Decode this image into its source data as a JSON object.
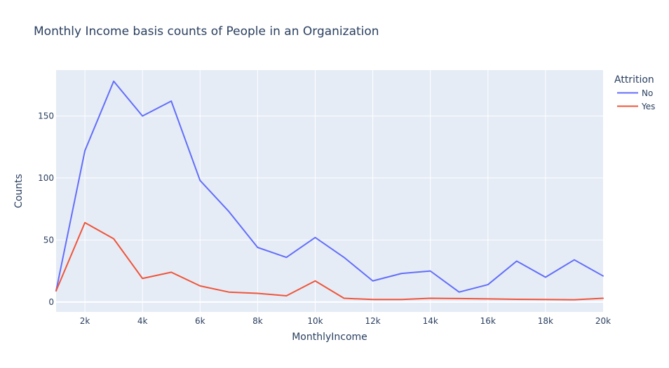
{
  "chart_data": {
    "type": "line",
    "title": "Monthly Income basis counts of People in an Organization",
    "xlabel": "MonthlyIncome",
    "ylabel": "Counts",
    "xlim": [
      1000,
      20000
    ],
    "ylim": [
      -8,
      187
    ],
    "x_ticks": [
      2000,
      4000,
      6000,
      8000,
      10000,
      12000,
      14000,
      16000,
      18000,
      20000
    ],
    "x_tick_labels": [
      "2k",
      "4k",
      "6k",
      "8k",
      "10k",
      "12k",
      "14k",
      "16k",
      "18k",
      "20k"
    ],
    "y_ticks": [
      0,
      50,
      100,
      150
    ],
    "y_tick_labels": [
      "0",
      "50",
      "100",
      "150"
    ],
    "grid": true,
    "legend": {
      "title": "Attrition",
      "position": "top-right"
    },
    "x": [
      1000,
      2000,
      3000,
      4000,
      5000,
      6000,
      7000,
      8000,
      9000,
      10000,
      11000,
      12000,
      13000,
      14000,
      15000,
      16000,
      17000,
      18000,
      19000,
      20000
    ],
    "series": [
      {
        "name": "No",
        "color": "#636efa",
        "values": [
          9,
          122,
          178,
          150,
          162,
          98,
          73,
          44,
          36,
          52,
          36,
          17,
          23,
          25,
          8,
          14,
          33,
          20,
          34,
          21
        ]
      },
      {
        "name": "Yes",
        "color": "#ef553b",
        "values": [
          9,
          64,
          51,
          19,
          24,
          13,
          8,
          7,
          5,
          17,
          3,
          2,
          2,
          3,
          2.8,
          2.5,
          2.2,
          2,
          1.8,
          3
        ]
      }
    ]
  }
}
